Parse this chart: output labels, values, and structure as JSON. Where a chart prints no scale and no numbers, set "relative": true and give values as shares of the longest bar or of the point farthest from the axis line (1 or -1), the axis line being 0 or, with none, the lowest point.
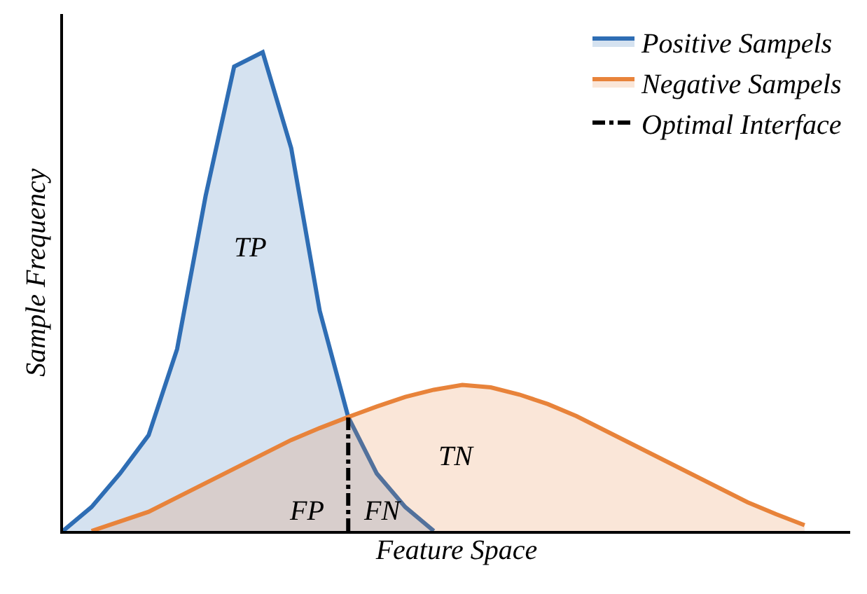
{
  "chart_data": {
    "type": "area",
    "relative": true,
    "xlabel": "Feature Space",
    "ylabel": "Sample Frequency",
    "tick_labels": false,
    "legend": "top right",
    "marker": "none",
    "categories": [
      null,
      null,
      null,
      null,
      null,
      null,
      null,
      null,
      null,
      null,
      null,
      null,
      null,
      null,
      null,
      null,
      null,
      null,
      null,
      null,
      null,
      null,
      null,
      null,
      null,
      null,
      null,
      null
    ],
    "series": [
      {
        "name": "Positive Sampels",
        "color": "#2e6db4",
        "values": [
          0,
          0.05,
          0.12,
          0.2,
          0.38,
          0.7,
          0.97,
          1,
          0.8,
          0.46,
          0.238,
          0.12,
          0.05,
          0,
          null,
          null,
          null,
          null,
          null,
          null,
          null,
          null,
          null,
          null,
          null,
          null,
          null,
          null
        ]
      },
      {
        "name": "Negative Sampels",
        "color": "#e8833a",
        "values": [
          null,
          0,
          0.02,
          0.04,
          0.07,
          0.1,
          0.13,
          0.16,
          0.19,
          0.215,
          0.238,
          0.26,
          0.28,
          0.295,
          0.305,
          0.3,
          0.285,
          0.265,
          0.24,
          0.21,
          0.18,
          0.15,
          0.12,
          0.09,
          0.06,
          0.035,
          0.012,
          null
        ]
      }
    ],
    "ref_lines": [
      {
        "axis": "x",
        "label": "Optimal Interface",
        "color": "#000000",
        "line_style": "dashed"
      }
    ],
    "annotations": [
      "TP",
      "TN",
      "FP",
      "FN"
    ]
  }
}
